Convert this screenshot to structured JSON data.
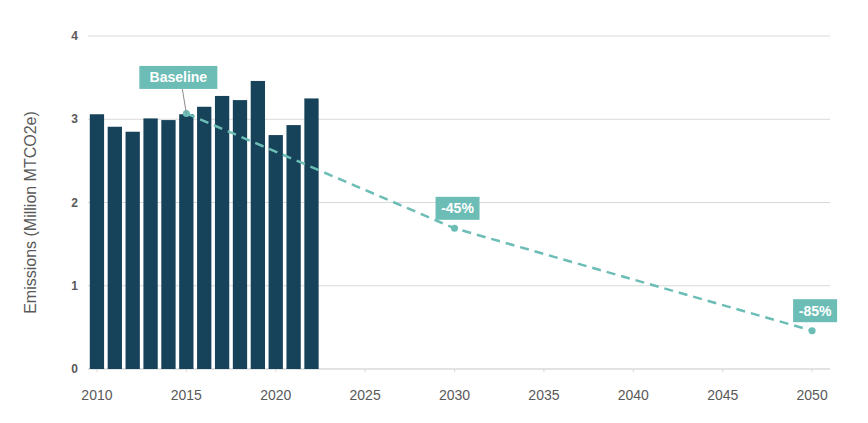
{
  "chart_data": {
    "type": "bar",
    "y_label": "Emissions (Million MTCO2e)",
    "xlim": [
      2009.5,
      2051
    ],
    "xticks": [
      2010,
      2015,
      2020,
      2025,
      2030,
      2035,
      2040,
      2045,
      2050
    ],
    "ylim": [
      0,
      4
    ],
    "yticks": [
      0,
      1,
      2,
      3,
      4
    ],
    "grid": true,
    "series": [
      {
        "type": "bar",
        "color": "#17435a",
        "x": [
          2010,
          2011,
          2012,
          2013,
          2014,
          2015,
          2016,
          2017,
          2018,
          2019,
          2020,
          2021,
          2022
        ],
        "values": [
          3.06,
          2.91,
          2.85,
          3.01,
          2.99,
          3.06,
          3.15,
          3.28,
          3.23,
          3.46,
          2.81,
          2.93,
          3.25
        ]
      },
      {
        "type": "line",
        "color": "#6bbdb6",
        "line_style": "dashed",
        "marker": "circle",
        "x": [
          2015,
          2030,
          2050
        ],
        "values": [
          3.07,
          1.69,
          0.46
        ]
      }
    ],
    "annotations": [
      {
        "text": "Baseline",
        "x": 2015,
        "y": 3.07
      },
      {
        "text": "-45%",
        "x": 2030,
        "y": 1.69
      },
      {
        "text": "-85%",
        "x": 2050,
        "y": 0.46
      }
    ]
  }
}
